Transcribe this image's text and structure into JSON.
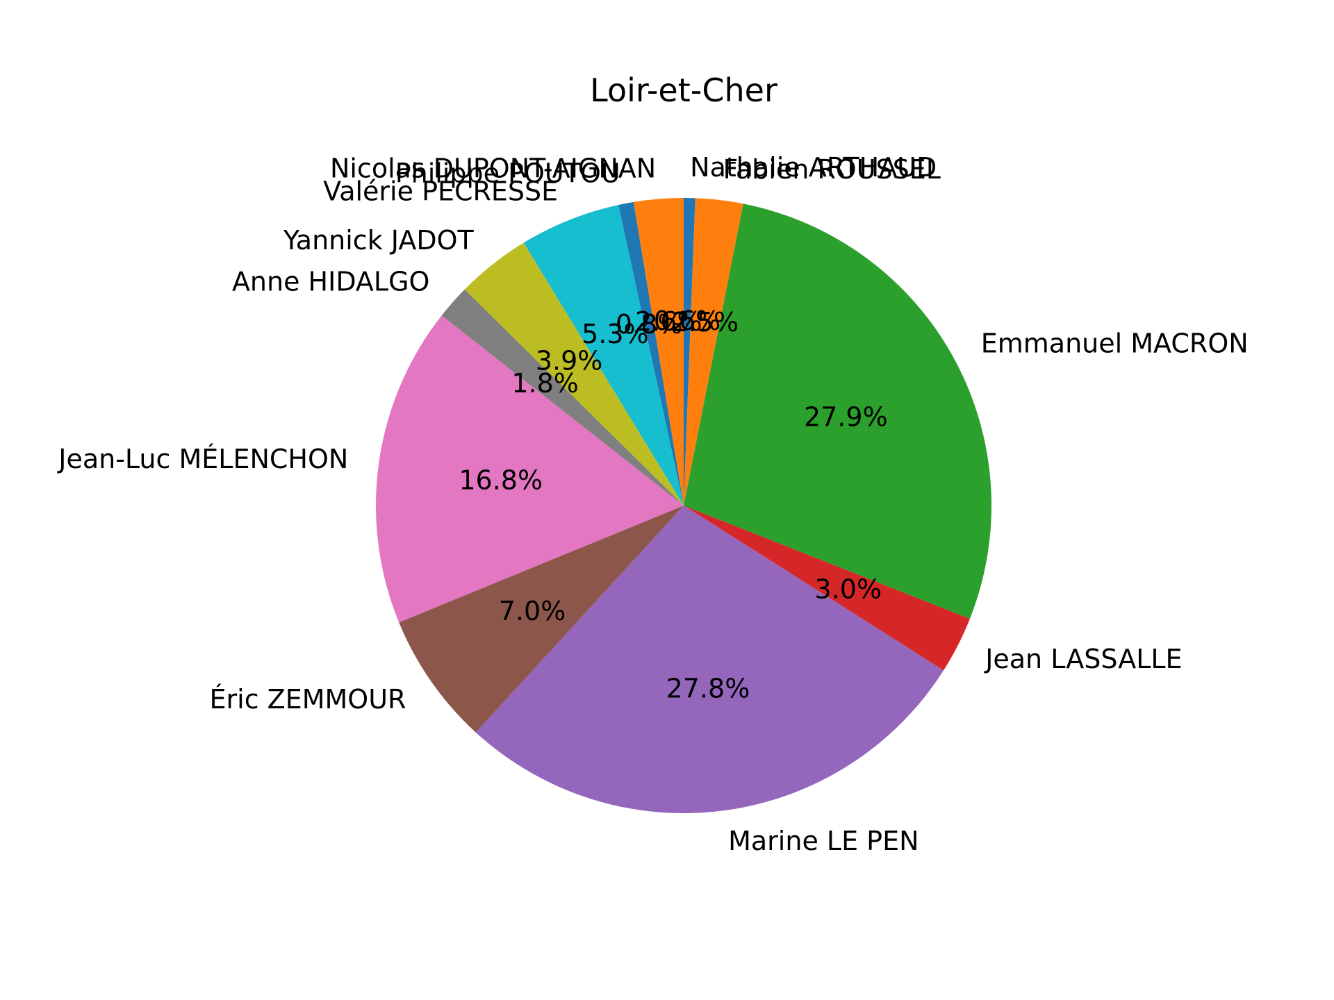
{
  "chart_data": {
    "type": "pie",
    "title": "Loir-et-Cher",
    "start_angle_deg": 90,
    "direction": "clockwise",
    "slices": [
      {
        "label": "Nathalie ARTHAUD",
        "pct_label": "0.6%",
        "value": 0.6,
        "color": "#1f77b4"
      },
      {
        "label": "Fabien ROUSSEL",
        "pct_label": "2.5%",
        "value": 2.5,
        "color": "#ff7f0e"
      },
      {
        "label": "Emmanuel MACRON",
        "pct_label": "27.9%",
        "value": 27.9,
        "color": "#2ca02c"
      },
      {
        "label": "Jean LASSALLE",
        "pct_label": "3.0%",
        "value": 3.0,
        "color": "#d62728"
      },
      {
        "label": "Marine LE PEN",
        "pct_label": "27.8%",
        "value": 27.8,
        "color": "#9467bd"
      },
      {
        "label": "Éric ZEMMOUR",
        "pct_label": "7.0%",
        "value": 7.0,
        "color": "#8c564b"
      },
      {
        "label": "Jean-Luc MÉLENCHON",
        "pct_label": "16.8%",
        "value": 16.8,
        "color": "#e377c2"
      },
      {
        "label": "Anne HIDALGO",
        "pct_label": "1.8%",
        "value": 1.8,
        "color": "#7f7f7f"
      },
      {
        "label": "Yannick JADOT",
        "pct_label": "3.9%",
        "value": 3.9,
        "color": "#bcbd22"
      },
      {
        "label": "Valérie PÉCRESSE",
        "pct_label": "5.3%",
        "value": 5.3,
        "color": "#17becf"
      },
      {
        "label": "Philippe POUTOU",
        "pct_label": "0.8%",
        "value": 0.8,
        "color": "#1f77b4"
      },
      {
        "label": "Nicolas DUPONT-AIGNAN",
        "pct_label": "2.6%",
        "value": 2.6,
        "color": "#ff7f0e"
      }
    ]
  }
}
